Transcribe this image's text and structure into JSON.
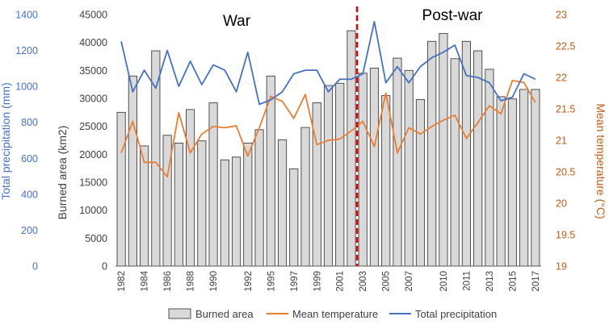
{
  "chart_data": {
    "type": "bar",
    "title": "",
    "annotations": {
      "war_label": "War",
      "postwar_label": "Post-war",
      "divider_after_year": "2002"
    },
    "categories": [
      "1982",
      "1983",
      "1984",
      "1985",
      "1986",
      "1987",
      "1988",
      "1989",
      "1990",
      "1991",
      "1992",
      "1993",
      "1994",
      "1995",
      "1996",
      "1997",
      "1998",
      "1999",
      "2000",
      "2001",
      "2002",
      "2003",
      "2004",
      "2005",
      "2006",
      "2007",
      "2008",
      "2009",
      "2010",
      "2011",
      "2012",
      "2013",
      "2014",
      "2015",
      "2016",
      "2017",
      "2018"
    ],
    "x_tick_labels": [
      "1982",
      "1984",
      "1986",
      "1988",
      "1990",
      "1992",
      "1995",
      "1997",
      "1999",
      "2001",
      "2003",
      "2005",
      "2007",
      "2010",
      "2011",
      "2013",
      "2015",
      "2017"
    ],
    "series": [
      {
        "name": "Burned area",
        "kind": "bar",
        "axis": "burned",
        "color": "#d9d9d9",
        "stroke": "#404040",
        "values": [
          27500,
          34000,
          21500,
          38500,
          23400,
          22000,
          28000,
          22400,
          29200,
          19000,
          19500,
          22000,
          24400,
          34000,
          22600,
          17400,
          24800,
          29200,
          32300,
          32700,
          42100,
          34500,
          35400,
          30500,
          37200,
          35000,
          29800,
          40200,
          41600,
          37100,
          40200,
          38500,
          35200,
          30300,
          29900,
          31600,
          31600
        ]
      },
      {
        "name": "Mean temperature",
        "kind": "line",
        "axis": "temperature",
        "color": "#ed7d31",
        "values": [
          20.8,
          21.3,
          20.65,
          20.65,
          20.42,
          21.44,
          20.8,
          21.1,
          21.22,
          21.2,
          21.23,
          20.75,
          21.2,
          21.7,
          21.62,
          21.35,
          21.73,
          20.93,
          21.0,
          21.02,
          21.15,
          21.3,
          20.9,
          21.75,
          20.8,
          21.2,
          21.1,
          21.22,
          21.32,
          21.4,
          21.03,
          21.28,
          21.55,
          21.42,
          21.95,
          21.92,
          21.6
        ]
      },
      {
        "name": "Total precipitation",
        "kind": "line",
        "axis": "precipitation",
        "color": "#4472c4",
        "values": [
          1250,
          970,
          1090,
          990,
          1200,
          1000,
          1140,
          1010,
          1120,
          1090,
          970,
          1190,
          900,
          925,
          970,
          1070,
          1090,
          1090,
          970,
          1040,
          1040,
          1070,
          1360,
          1020,
          1110,
          1020,
          1110,
          1160,
          1190,
          1230,
          1060,
          1050,
          1020,
          920,
          940,
          1070,
          1040
        ]
      }
    ],
    "axes": {
      "precipitation": {
        "label": "Total precipitation (mm)",
        "min": 0,
        "max": 1400,
        "ticks": [
          "0",
          "200",
          "400",
          "600",
          "800",
          "1000",
          "1200",
          "1400"
        ],
        "color": "#4472c4"
      },
      "burned": {
        "label": "Burned area (km2)",
        "min": 0,
        "max": 45000,
        "ticks": [
          "0",
          "5000",
          "10000",
          "15000",
          "20000",
          "25000",
          "30000",
          "35000",
          "40000",
          "45000"
        ],
        "color": "#404040"
      },
      "temperature": {
        "label": "Mean temperature (°C)",
        "min": 19,
        "max": 23,
        "ticks": [
          "19",
          "19.5",
          "20",
          "20.5",
          "21",
          "21.5",
          "22",
          "22.5",
          "23"
        ],
        "color": "#c55a11"
      }
    },
    "grid": false,
    "legend": {
      "position": "bottom",
      "entries": [
        "Burned area",
        "Mean temperature",
        "Total precipitation"
      ]
    }
  }
}
